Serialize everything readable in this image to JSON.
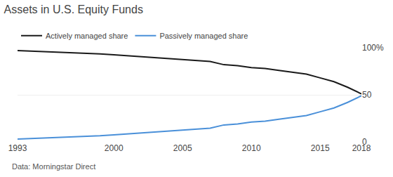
{
  "chart_data": {
    "type": "line",
    "title": "Assets in U.S. Equity Funds",
    "annotations": [
      "Data: Morningstar Direct"
    ],
    "x": [
      1993,
      1994,
      1995,
      1996,
      1997,
      1998,
      1999,
      2000,
      2001,
      2002,
      2003,
      2004,
      2005,
      2006,
      2007,
      2008,
      2009,
      2010,
      2011,
      2012,
      2013,
      2014,
      2015,
      2016,
      2017,
      2018
    ],
    "series": [
      {
        "name": "Actively managed share",
        "color": "#1a1a1a",
        "values": [
          97,
          96.5,
          96,
          95.5,
          95,
          94.5,
          93.5,
          92.5,
          91.5,
          90.5,
          89.5,
          88.5,
          87.5,
          86.5,
          85.5,
          82,
          81,
          79,
          78,
          76,
          74,
          72,
          68,
          64,
          58,
          51
        ]
      },
      {
        "name": "Passively managed share",
        "color": "#4a90d9",
        "values": [
          3,
          3.5,
          4,
          4.5,
          5,
          5.5,
          6.5,
          7.5,
          8.5,
          9.5,
          10.5,
          11.5,
          12.5,
          13.5,
          14.5,
          18,
          19,
          21,
          22,
          24,
          26,
          28,
          32,
          36,
          42,
          49
        ]
      }
    ],
    "xlim": [
      1993,
      2018
    ],
    "xticks": [
      1993,
      2000,
      2005,
      2010,
      2015,
      2018
    ],
    "ylim": [
      0,
      100
    ],
    "yticks": [
      0,
      50,
      {
        "value": 100,
        "label": "100%"
      }
    ],
    "grid": true,
    "legend": "top left"
  }
}
